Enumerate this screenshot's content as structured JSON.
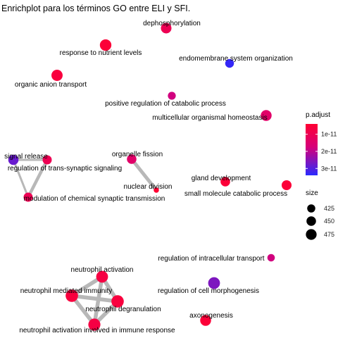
{
  "chart_data": {
    "type": "network",
    "title": "Enrichplot para los términos GO entre ELI y SFI.",
    "legend": {
      "color_title": "p.adjust",
      "color_ticks": [
        "1e-11",
        "2e-11",
        "3e-11"
      ],
      "color_tick_values": [
        1e-11,
        2e-11,
        3e-11
      ],
      "color_range": [
        4e-12,
        3.4e-11
      ],
      "color_low": "#ff0033",
      "color_mid": "#d6007a",
      "color_high": "#2a2aff",
      "size_title": "size",
      "size_ticks": [
        "425",
        "450",
        "475"
      ],
      "size_tick_values": [
        425,
        450,
        475
      ],
      "position": "right"
    },
    "nodes": [
      {
        "id": "dephos",
        "label": "dephosphorylation",
        "size": 440,
        "p_adjust": 1e-11
      },
      {
        "id": "nutrient",
        "label": "response to nutrient levels",
        "size": 455,
        "p_adjust": 5e-12
      },
      {
        "id": "endomem",
        "label": "endomembrane system organization",
        "size": 415,
        "p_adjust": 3.3e-11
      },
      {
        "id": "anion",
        "label": "organic anion transport",
        "size": 450,
        "p_adjust": 6e-12
      },
      {
        "id": "catabolic",
        "label": "positive regulation of catabolic process",
        "size": 405,
        "p_adjust": 1.8e-11
      },
      {
        "id": "homeo",
        "label": "multicellular organismal homeostasis",
        "size": 445,
        "p_adjust": 1.4e-11
      },
      {
        "id": "signal",
        "label": "signal release",
        "size": 435,
        "p_adjust": 2.8e-11
      },
      {
        "id": "transsyn",
        "label": "regulation of trans-synaptic signaling",
        "size": 420,
        "p_adjust": 1e-11
      },
      {
        "id": "chemsyn",
        "label": "modulation of chemical synaptic transmission",
        "size": 420,
        "p_adjust": 1e-11
      },
      {
        "id": "fission",
        "label": "organelle fission",
        "size": 425,
        "p_adjust": 1.4e-11
      },
      {
        "id": "nuclear",
        "label": "nuclear division",
        "size": 380,
        "p_adjust": 4e-12
      },
      {
        "id": "gland",
        "label": "gland development",
        "size": 425,
        "p_adjust": 5e-12
      },
      {
        "id": "smallmol",
        "label": "small molecule catabolic process",
        "size": 430,
        "p_adjust": 5e-12
      },
      {
        "id": "intracell",
        "label": "regulation of intracellular transport",
        "size": 400,
        "p_adjust": 1.8e-11
      },
      {
        "id": "cellmorph",
        "label": "regulation of cell morphogenesis",
        "size": 460,
        "p_adjust": 2.6e-11
      },
      {
        "id": "axono",
        "label": "axonogenesis",
        "size": 445,
        "p_adjust": 5e-12
      },
      {
        "id": "nactiv",
        "label": "neutrophil activation",
        "size": 460,
        "p_adjust": 7e-12
      },
      {
        "id": "nmedimm",
        "label": "neutrophil mediated immunity",
        "size": 470,
        "p_adjust": 6e-12
      },
      {
        "id": "ndegran",
        "label": "neutrophil degranulation",
        "size": 470,
        "p_adjust": 6e-12
      },
      {
        "id": "nactimm",
        "label": "neutrophil activation involved in immune response",
        "size": 465,
        "p_adjust": 7e-12
      }
    ],
    "edges": [
      {
        "source": "signal",
        "target": "transsyn",
        "weight": 0.4
      },
      {
        "source": "signal",
        "target": "chemsyn",
        "weight": 0.4
      },
      {
        "source": "transsyn",
        "target": "chemsyn",
        "weight": 0.7
      },
      {
        "source": "fission",
        "target": "nuclear",
        "weight": 0.8
      },
      {
        "source": "nactiv",
        "target": "nmedimm",
        "weight": 0.9
      },
      {
        "source": "nactiv",
        "target": "ndegran",
        "weight": 0.9
      },
      {
        "source": "nactiv",
        "target": "nactimm",
        "weight": 0.9
      },
      {
        "source": "nmedimm",
        "target": "ndegran",
        "weight": 0.9
      },
      {
        "source": "nmedimm",
        "target": "nactimm",
        "weight": 0.9
      },
      {
        "source": "ndegran",
        "target": "nactimm",
        "weight": 0.9
      }
    ]
  }
}
